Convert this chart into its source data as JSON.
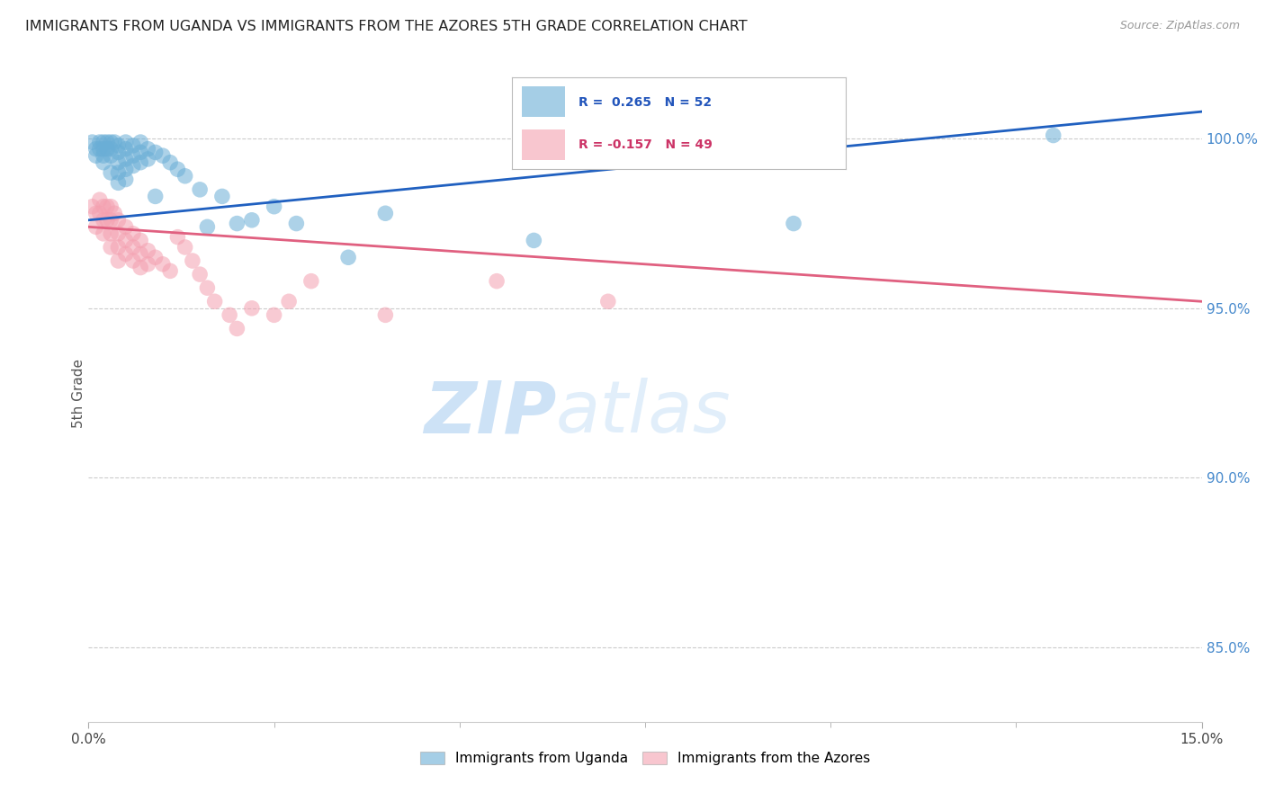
{
  "title": "IMMIGRANTS FROM UGANDA VS IMMIGRANTS FROM THE AZORES 5TH GRADE CORRELATION CHART",
  "source": "Source: ZipAtlas.com",
  "ylabel": "5th Grade",
  "ylabel_right_labels": [
    "100.0%",
    "95.0%",
    "90.0%",
    "85.0%"
  ],
  "ylabel_right_values": [
    1.0,
    0.95,
    0.9,
    0.85
  ],
  "xmin": 0.0,
  "xmax": 0.15,
  "ymin": 0.828,
  "ymax": 1.022,
  "legend_uganda": "Immigrants from Uganda",
  "legend_azores": "Immigrants from the Azores",
  "R_uganda": 0.265,
  "N_uganda": 52,
  "R_azores": -0.157,
  "N_azores": 49,
  "uganda_color": "#6aaed6",
  "azores_color": "#f4a0b0",
  "uganda_line_color": "#2060c0",
  "azores_line_color": "#e06080",
  "watermark_zip": "ZIP",
  "watermark_atlas": "atlas",
  "uganda_line_x": [
    0.0,
    0.15
  ],
  "uganda_line_y": [
    0.976,
    1.008
  ],
  "azores_line_x": [
    0.0,
    0.15
  ],
  "azores_line_y": [
    0.974,
    0.952
  ],
  "uganda_scatter": [
    [
      0.0005,
      0.999
    ],
    [
      0.001,
      0.997
    ],
    [
      0.001,
      0.995
    ],
    [
      0.0015,
      0.999
    ],
    [
      0.0015,
      0.997
    ],
    [
      0.002,
      0.999
    ],
    [
      0.002,
      0.997
    ],
    [
      0.002,
      0.995
    ],
    [
      0.002,
      0.993
    ],
    [
      0.0025,
      0.999
    ],
    [
      0.0025,
      0.997
    ],
    [
      0.003,
      0.999
    ],
    [
      0.003,
      0.997
    ],
    [
      0.003,
      0.995
    ],
    [
      0.003,
      0.99
    ],
    [
      0.0035,
      0.999
    ],
    [
      0.004,
      0.998
    ],
    [
      0.004,
      0.996
    ],
    [
      0.004,
      0.993
    ],
    [
      0.004,
      0.99
    ],
    [
      0.004,
      0.987
    ],
    [
      0.005,
      0.999
    ],
    [
      0.005,
      0.997
    ],
    [
      0.005,
      0.994
    ],
    [
      0.005,
      0.991
    ],
    [
      0.005,
      0.988
    ],
    [
      0.006,
      0.998
    ],
    [
      0.006,
      0.995
    ],
    [
      0.006,
      0.992
    ],
    [
      0.007,
      0.999
    ],
    [
      0.007,
      0.996
    ],
    [
      0.007,
      0.993
    ],
    [
      0.008,
      0.997
    ],
    [
      0.008,
      0.994
    ],
    [
      0.009,
      0.996
    ],
    [
      0.009,
      0.983
    ],
    [
      0.01,
      0.995
    ],
    [
      0.011,
      0.993
    ],
    [
      0.012,
      0.991
    ],
    [
      0.013,
      0.989
    ],
    [
      0.015,
      0.985
    ],
    [
      0.016,
      0.974
    ],
    [
      0.018,
      0.983
    ],
    [
      0.02,
      0.975
    ],
    [
      0.022,
      0.976
    ],
    [
      0.025,
      0.98
    ],
    [
      0.028,
      0.975
    ],
    [
      0.035,
      0.965
    ],
    [
      0.04,
      0.978
    ],
    [
      0.06,
      0.97
    ],
    [
      0.095,
      0.975
    ],
    [
      0.13,
      1.001
    ]
  ],
  "azores_scatter": [
    [
      0.0005,
      0.98
    ],
    [
      0.001,
      0.978
    ],
    [
      0.001,
      0.974
    ],
    [
      0.0015,
      0.982
    ],
    [
      0.0015,
      0.978
    ],
    [
      0.002,
      0.98
    ],
    [
      0.002,
      0.976
    ],
    [
      0.002,
      0.972
    ],
    [
      0.0025,
      0.98
    ],
    [
      0.0025,
      0.976
    ],
    [
      0.003,
      0.98
    ],
    [
      0.003,
      0.976
    ],
    [
      0.003,
      0.972
    ],
    [
      0.003,
      0.968
    ],
    [
      0.0035,
      0.978
    ],
    [
      0.004,
      0.976
    ],
    [
      0.004,
      0.972
    ],
    [
      0.004,
      0.968
    ],
    [
      0.004,
      0.964
    ],
    [
      0.005,
      0.974
    ],
    [
      0.005,
      0.97
    ],
    [
      0.005,
      0.966
    ],
    [
      0.006,
      0.972
    ],
    [
      0.006,
      0.968
    ],
    [
      0.006,
      0.964
    ],
    [
      0.007,
      0.97
    ],
    [
      0.007,
      0.966
    ],
    [
      0.007,
      0.962
    ],
    [
      0.008,
      0.967
    ],
    [
      0.008,
      0.963
    ],
    [
      0.009,
      0.965
    ],
    [
      0.01,
      0.963
    ],
    [
      0.011,
      0.961
    ],
    [
      0.012,
      0.971
    ],
    [
      0.013,
      0.968
    ],
    [
      0.014,
      0.964
    ],
    [
      0.015,
      0.96
    ],
    [
      0.016,
      0.956
    ],
    [
      0.017,
      0.952
    ],
    [
      0.019,
      0.948
    ],
    [
      0.02,
      0.944
    ],
    [
      0.022,
      0.95
    ],
    [
      0.025,
      0.948
    ],
    [
      0.027,
      0.952
    ],
    [
      0.03,
      0.958
    ],
    [
      0.04,
      0.948
    ],
    [
      0.055,
      0.958
    ],
    [
      0.07,
      0.952
    ],
    [
      0.085,
      1.001
    ]
  ]
}
